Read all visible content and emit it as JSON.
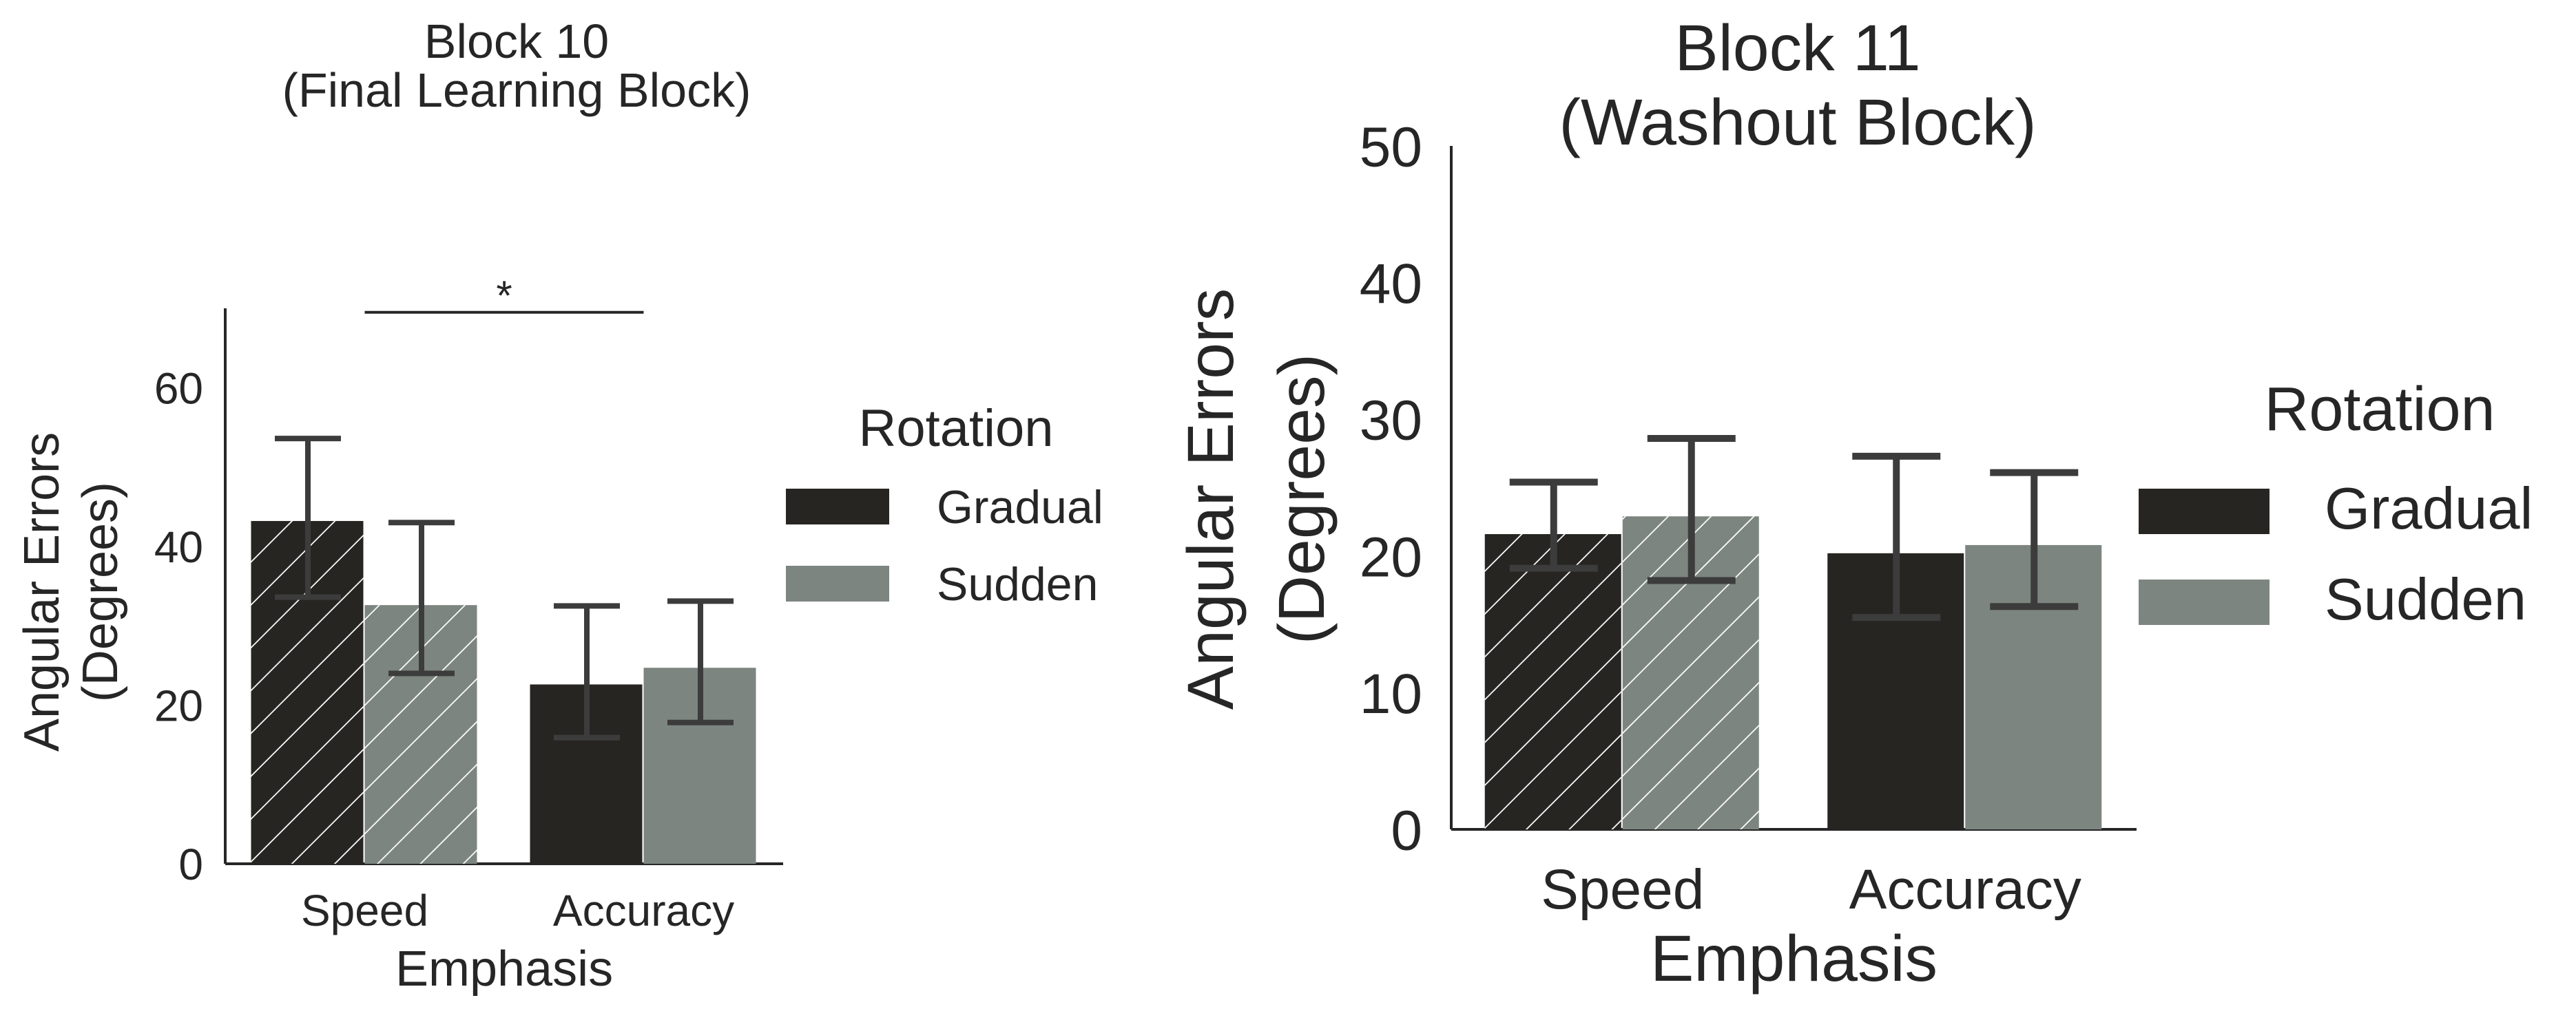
{
  "colors": {
    "gradual": "#272522",
    "sudden": "#7d8580",
    "axis": "#262626",
    "errorbar": "#3c3c3c",
    "hatch": "#ffffff",
    "background": "#ffffff"
  },
  "chart_data": [
    {
      "type": "bar",
      "title": "Block 10\n(Final Learning Block)",
      "xlabel": "Emphasis",
      "ylabel": "Angular Errors\n(Degrees)",
      "categories": [
        "Speed",
        "Accuracy"
      ],
      "ylim": [
        0,
        70
      ],
      "yticks": [
        0,
        20,
        40,
        60
      ],
      "grid": false,
      "legend": {
        "title": "Rotation",
        "placement": "right",
        "entries": [
          "Gradual",
          "Sudden"
        ]
      },
      "series": [
        {
          "name": "Gradual",
          "values": [
            43.2,
            22.6
          ],
          "err_low": [
            33.6,
            15.9
          ],
          "err_high": [
            53.6,
            32.5
          ]
        },
        {
          "name": "Sudden",
          "values": [
            32.6,
            24.7
          ],
          "err_low": [
            24.0,
            17.8
          ],
          "err_high": [
            43.0,
            33.1
          ]
        }
      ],
      "hatched_category": "Speed",
      "annotations": [
        {
          "text": "*",
          "from": "Speed",
          "to": "Accuracy",
          "y": 69.5
        }
      ]
    },
    {
      "type": "bar",
      "title": "Block 11\n(Washout Block)",
      "xlabel": "Emphasis",
      "ylabel": "Angular Errors\n(Degrees)",
      "categories": [
        "Speed",
        "Accuracy"
      ],
      "ylim": [
        0,
        50
      ],
      "yticks": [
        0,
        10,
        20,
        30,
        40,
        50
      ],
      "grid": false,
      "legend": {
        "title": "Rotation",
        "placement": "right",
        "entries": [
          "Gradual",
          "Sudden"
        ]
      },
      "series": [
        {
          "name": "Gradual",
          "values": [
            21.6,
            20.2
          ],
          "err_low": [
            19.1,
            15.5
          ],
          "err_high": [
            25.4,
            27.3
          ]
        },
        {
          "name": "Sudden",
          "values": [
            22.9,
            20.8
          ],
          "err_low": [
            18.2,
            16.3
          ],
          "err_high": [
            28.6,
            26.1
          ]
        }
      ],
      "hatched_category": "Speed",
      "annotations": []
    }
  ]
}
